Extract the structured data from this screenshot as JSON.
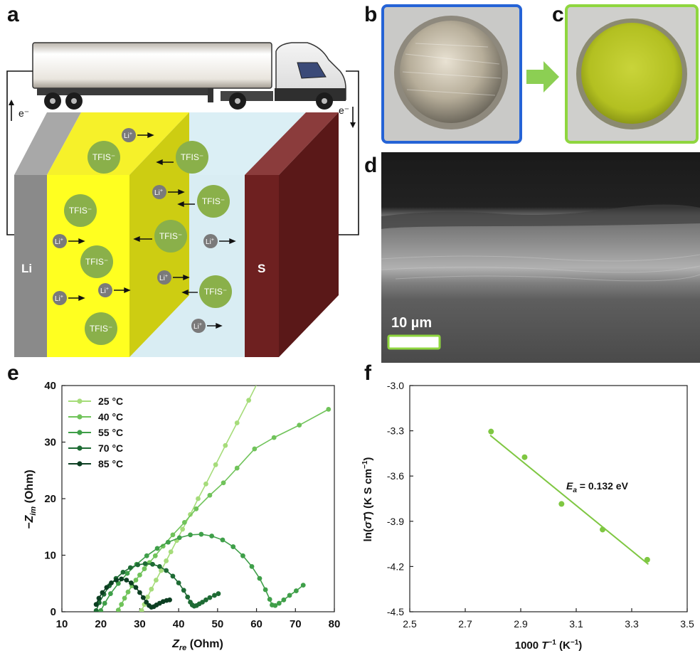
{
  "panels": {
    "a": "a",
    "b": "b",
    "c": "c",
    "d": "d",
    "e": "e",
    "f": "f"
  },
  "schematic": {
    "electron_left": "e⁻",
    "electron_right": "e⁻",
    "anode_label": "Li",
    "cathode_label": "S",
    "anion_label": "TFIS⁻",
    "cation_label": "Li",
    "cation_charge": "+"
  },
  "sem": {
    "scale_label": "10 µm",
    "scale_color": "#8fd63f"
  },
  "colors": {
    "c25": "#a6dc7a",
    "c40": "#70c35a",
    "c55": "#3f9f49",
    "c70": "#1e6b34",
    "c85": "#0c3f22",
    "fit": "#7fc742",
    "frame_b": "#2563d6",
    "frame_c": "#8fd63f"
  },
  "chart_data": [
    {
      "type": "line",
      "panel": "e",
      "xlabel_italic": "Z",
      "xlabel_sub": "re",
      "xlabel_unit": " (Ohm)",
      "ylabel_prefix": "−Z",
      "ylabel_sub": "im",
      "ylabel_unit": " (Ohm)",
      "xlim": [
        10,
        80
      ],
      "ylim": [
        0,
        40
      ],
      "xticks": [
        10,
        20,
        30,
        40,
        50,
        60,
        70,
        80
      ],
      "yticks": [
        0,
        10,
        20,
        30,
        40
      ],
      "legend_position": "top-left",
      "series": [
        {
          "name": "25 °C",
          "x": [
            30.5,
            31.2,
            32.0,
            33.0,
            34.2,
            35.5,
            36.8,
            38.0,
            39.5,
            41.0,
            43.0,
            45.0,
            47.0,
            49.5,
            52.0,
            55.0,
            58.0,
            61.0
          ],
          "y": [
            0.2,
            1.3,
            2.6,
            4.0,
            5.6,
            7.3,
            9.0,
            10.6,
            12.6,
            14.6,
            17.2,
            20.0,
            22.6,
            26.0,
            29.4,
            33.4,
            37.4,
            41.5
          ]
        },
        {
          "name": "40 °C",
          "x": [
            24.5,
            25.3,
            26.1,
            27.0,
            28.0,
            29.0,
            30.0,
            31.2,
            32.5,
            34.0,
            36.0,
            38.5,
            41.5,
            44.5,
            48.0,
            51.5,
            55.0,
            59.5,
            64.5,
            71.0,
            78.5
          ],
          "y": [
            0.3,
            1.3,
            2.4,
            3.5,
            4.6,
            5.6,
            6.5,
            7.6,
            8.7,
            9.9,
            11.6,
            13.6,
            15.8,
            18.2,
            20.6,
            22.8,
            25.4,
            28.8,
            30.8,
            33.0,
            35.8
          ]
        },
        {
          "name": "55 °C",
          "x": [
            20.0,
            21.0,
            22.5,
            24.5,
            26.8,
            29.2,
            31.8,
            34.5,
            37.3,
            40.2,
            43.0,
            45.8,
            48.5,
            51.3,
            54.0,
            56.5,
            58.8,
            60.8,
            62.3,
            63.4,
            64.0,
            64.8,
            65.8,
            67.0,
            68.5,
            70.2,
            72.0
          ],
          "y": [
            0.2,
            1.5,
            3.2,
            5.0,
            6.8,
            8.4,
            9.9,
            11.2,
            12.3,
            13.1,
            13.6,
            13.7,
            13.4,
            12.7,
            11.5,
            9.9,
            8.0,
            5.9,
            3.9,
            2.2,
            1.2,
            1.1,
            1.5,
            2.1,
            2.9,
            3.7,
            4.7
          ]
        },
        {
          "name": "70 °C",
          "x": [
            18.8,
            19.6,
            20.8,
            22.2,
            23.9,
            25.7,
            27.6,
            29.5,
            31.4,
            33.3,
            35.1,
            36.8,
            38.5,
            40.0,
            41.3,
            42.3,
            43.0,
            43.5,
            44.0,
            44.6,
            45.3,
            46.1,
            47.0,
            48.0,
            49.2,
            50.2
          ],
          "y": [
            0.2,
            1.6,
            3.1,
            4.6,
            5.9,
            7.0,
            7.8,
            8.3,
            8.5,
            8.4,
            8.0,
            7.3,
            6.3,
            5.1,
            3.8,
            2.6,
            1.7,
            1.2,
            1.0,
            1.1,
            1.4,
            1.7,
            2.1,
            2.5,
            2.9,
            3.2
          ]
        },
        {
          "name": "85 °C",
          "x": [
            18.8,
            19.5,
            20.4,
            21.5,
            22.7,
            24.0,
            25.3,
            26.6,
            27.8,
            29.0,
            30.0,
            30.9,
            31.7,
            32.4,
            33.0,
            33.6,
            34.3,
            35.1,
            36.0,
            36.9,
            37.7
          ],
          "y": [
            1.3,
            2.4,
            3.4,
            4.3,
            5.1,
            5.6,
            5.8,
            5.6,
            5.1,
            4.3,
            3.4,
            2.5,
            1.7,
            1.1,
            0.8,
            0.9,
            1.2,
            1.5,
            1.8,
            2.0,
            2.1
          ]
        }
      ]
    },
    {
      "type": "scatter",
      "panel": "f",
      "xlabel_prefix": "1000 ",
      "xlabel_italic": "T",
      "xlabel_sup": "−1",
      "xlabel_unit": " (K",
      "xlabel_unit_sup": "−1",
      "xlabel_close": ")",
      "ylabel_prefix": "ln(",
      "ylabel_italic": "σT",
      "ylabel_mid": ") (K S cm",
      "ylabel_sup": "−1",
      "ylabel_close": ")",
      "xlim": [
        2.5,
        3.5
      ],
      "ylim": [
        -4.5,
        -3.0
      ],
      "xticks": [
        "2.5",
        "2.7",
        "2.9",
        "3.1",
        "3.3",
        "3.5"
      ],
      "yticks": [
        "-3.0",
        "-3.3",
        "-3.6",
        "-3.9",
        "-4.2",
        "-4.5"
      ],
      "points": {
        "x": [
          2.793,
          2.914,
          3.047,
          3.195,
          3.356
        ],
        "y": [
          -3.305,
          -3.475,
          -3.785,
          -3.955,
          -4.155
        ]
      },
      "fit": {
        "x": [
          2.79,
          3.36
        ],
        "y": [
          -3.33,
          -4.185
        ]
      },
      "annotation_italic": "E",
      "annotation_sub": "a",
      "annotation_rest": " = 0.132 eV"
    }
  ]
}
